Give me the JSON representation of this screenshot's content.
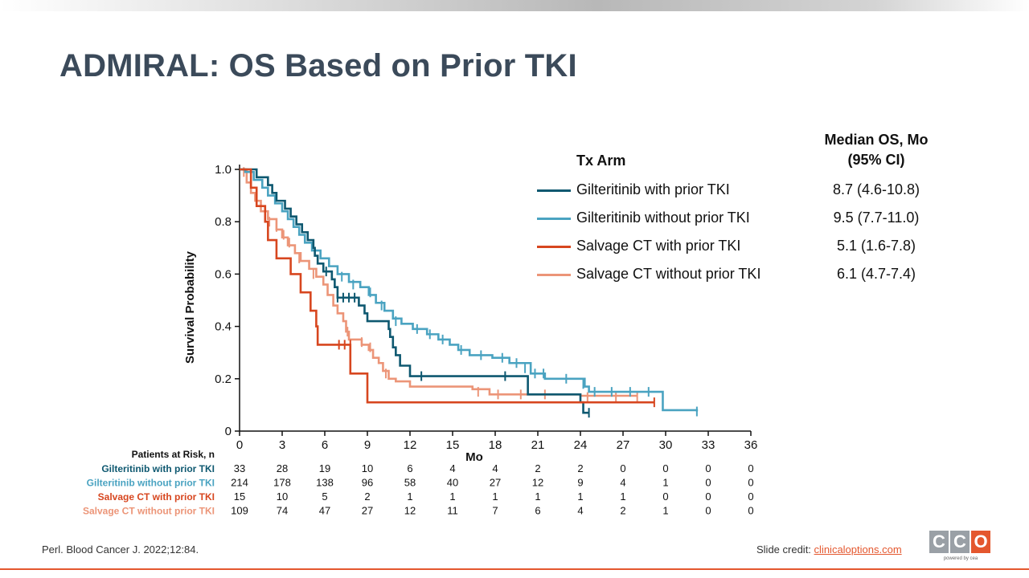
{
  "slide": {
    "title": "ADMIRAL: OS Based on Prior TKI",
    "reference": "Perl. Blood Cancer J. 2022;12:84.",
    "credit_label": "Slide credit: ",
    "credit_link": "clinicaloptions.com",
    "logo": {
      "letters": [
        "C",
        "C",
        "O"
      ],
      "tagline": "powered by cea"
    }
  },
  "legend": {
    "header_arm": "Tx Arm",
    "header_os_line1": "Median OS, Mo",
    "header_os_line2": "(95% CI)",
    "rows": [
      {
        "label": "Gilteritinib with prior TKI",
        "value": "8.7 (4.6-10.8)",
        "color": "#0e5870"
      },
      {
        "label": "Gilteritinib without prior TKI",
        "value": "9.5 (7.7-11.0)",
        "color": "#4aa3c1"
      },
      {
        "label": "Salvage CT with prior TKI",
        "value": "5.1 (1.6-7.8)",
        "color": "#d7461f"
      },
      {
        "label": "Salvage CT  without prior TKI",
        "value": "6.1 (4.7-7.4)",
        "color": "#ec9578"
      }
    ]
  },
  "chart_data": {
    "type": "line",
    "subtype": "kaplan-meier",
    "xlabel": "Mo",
    "ylabel": "Survival Probability",
    "xlim": [
      0,
      36
    ],
    "ylim": [
      0,
      1.0
    ],
    "xticks": [
      0,
      3,
      6,
      9,
      12,
      15,
      18,
      21,
      24,
      27,
      30,
      33,
      36
    ],
    "yticks": [
      0,
      0.2,
      0.4,
      0.6,
      0.8,
      1.0
    ],
    "ytick_labels": [
      "0",
      "0.2",
      "0.4",
      "0.6",
      "0.8",
      "1.0"
    ],
    "grid": false,
    "series": [
      {
        "name": "Gilteritinib with prior TKI",
        "color": "#0e5870",
        "steps": [
          [
            0,
            1.0
          ],
          [
            1.2,
            0.97
          ],
          [
            2.0,
            0.94
          ],
          [
            2.3,
            0.91
          ],
          [
            2.6,
            0.88
          ],
          [
            3.2,
            0.85
          ],
          [
            3.6,
            0.82
          ],
          [
            4.0,
            0.79
          ],
          [
            4.4,
            0.76
          ],
          [
            4.8,
            0.73
          ],
          [
            5.2,
            0.7
          ],
          [
            5.3,
            0.67
          ],
          [
            5.5,
            0.64
          ],
          [
            5.9,
            0.61
          ],
          [
            6.5,
            0.58
          ],
          [
            6.7,
            0.55
          ],
          [
            6.9,
            0.51
          ],
          [
            8.4,
            0.48
          ],
          [
            8.8,
            0.45
          ],
          [
            9.0,
            0.42
          ],
          [
            10.5,
            0.39
          ],
          [
            10.6,
            0.36
          ],
          [
            10.8,
            0.32
          ],
          [
            11.0,
            0.29
          ],
          [
            11.3,
            0.25
          ],
          [
            12.0,
            0.21
          ],
          [
            20.3,
            0.14
          ],
          [
            24.0,
            0.11
          ],
          [
            24.2,
            0.07
          ],
          [
            24.6,
            0.07
          ]
        ],
        "censors": [
          [
            6.1,
            0.61
          ],
          [
            6.9,
            0.51
          ],
          [
            7.3,
            0.51
          ],
          [
            7.7,
            0.51
          ],
          [
            8.1,
            0.51
          ],
          [
            12.8,
            0.21
          ],
          [
            18.7,
            0.21
          ],
          [
            24.6,
            0.07
          ]
        ]
      },
      {
        "name": "Gilteritinib without prior TKI",
        "color": "#4aa3c1",
        "steps": [
          [
            0,
            1.0
          ],
          [
            0.4,
            0.99
          ],
          [
            1.0,
            0.96
          ],
          [
            1.6,
            0.93
          ],
          [
            2.0,
            0.9
          ],
          [
            2.5,
            0.87
          ],
          [
            3.0,
            0.84
          ],
          [
            3.4,
            0.81
          ],
          [
            3.8,
            0.78
          ],
          [
            4.2,
            0.75
          ],
          [
            4.6,
            0.72
          ],
          [
            5.1,
            0.69
          ],
          [
            5.7,
            0.66
          ],
          [
            6.3,
            0.63
          ],
          [
            6.9,
            0.6
          ],
          [
            7.7,
            0.57
          ],
          [
            8.5,
            0.55
          ],
          [
            9.1,
            0.52
          ],
          [
            9.6,
            0.49
          ],
          [
            10.2,
            0.46
          ],
          [
            10.8,
            0.43
          ],
          [
            11.4,
            0.41
          ],
          [
            12.2,
            0.39
          ],
          [
            13.2,
            0.37
          ],
          [
            14.0,
            0.35
          ],
          [
            14.8,
            0.33
          ],
          [
            15.4,
            0.31
          ],
          [
            16.2,
            0.29
          ],
          [
            17.8,
            0.28
          ],
          [
            19.0,
            0.26
          ],
          [
            20.5,
            0.22
          ],
          [
            21.5,
            0.2
          ],
          [
            24.3,
            0.17
          ],
          [
            24.6,
            0.15
          ],
          [
            29.8,
            0.08
          ],
          [
            32.2,
            0.075
          ]
        ],
        "censors": [
          [
            7.2,
            0.59
          ],
          [
            8.0,
            0.56
          ],
          [
            9.2,
            0.53
          ],
          [
            10.0,
            0.48
          ],
          [
            11.0,
            0.42
          ],
          [
            12.5,
            0.39
          ],
          [
            13.4,
            0.37
          ],
          [
            14.3,
            0.35
          ],
          [
            15.6,
            0.31
          ],
          [
            17.0,
            0.29
          ],
          [
            18.5,
            0.28
          ],
          [
            19.5,
            0.26
          ],
          [
            20.1,
            0.24
          ],
          [
            20.8,
            0.22
          ],
          [
            21.4,
            0.22
          ],
          [
            23.0,
            0.2
          ],
          [
            24.2,
            0.18
          ],
          [
            25.0,
            0.15
          ],
          [
            26.2,
            0.15
          ],
          [
            27.5,
            0.15
          ],
          [
            28.8,
            0.15
          ],
          [
            32.2,
            0.075
          ]
        ]
      },
      {
        "name": "Salvage CT with prior TKI",
        "color": "#d7461f",
        "steps": [
          [
            0,
            1.0
          ],
          [
            0.8,
            0.93
          ],
          [
            1.2,
            0.86
          ],
          [
            1.8,
            0.8
          ],
          [
            2.0,
            0.73
          ],
          [
            2.6,
            0.66
          ],
          [
            3.6,
            0.6
          ],
          [
            4.3,
            0.53
          ],
          [
            5.0,
            0.46
          ],
          [
            5.4,
            0.4
          ],
          [
            5.5,
            0.33
          ],
          [
            7.8,
            0.22
          ],
          [
            9.0,
            0.11
          ],
          [
            29.2,
            0.11
          ]
        ],
        "censors": [
          [
            7.0,
            0.33
          ],
          [
            7.4,
            0.33
          ],
          [
            7.8,
            0.33
          ],
          [
            29.2,
            0.11
          ]
        ]
      },
      {
        "name": "Salvage CT  without prior TKI",
        "color": "#ec9578",
        "steps": [
          [
            0,
            1.0
          ],
          [
            0.5,
            0.95
          ],
          [
            0.8,
            0.91
          ],
          [
            1.1,
            0.88
          ],
          [
            1.5,
            0.84
          ],
          [
            2.0,
            0.81
          ],
          [
            2.6,
            0.77
          ],
          [
            3.0,
            0.74
          ],
          [
            3.4,
            0.71
          ],
          [
            3.9,
            0.68
          ],
          [
            4.3,
            0.65
          ],
          [
            4.9,
            0.62
          ],
          [
            5.4,
            0.59
          ],
          [
            5.9,
            0.56
          ],
          [
            6.2,
            0.52
          ],
          [
            6.6,
            0.48
          ],
          [
            6.9,
            0.45
          ],
          [
            7.3,
            0.42
          ],
          [
            7.5,
            0.38
          ],
          [
            7.7,
            0.35
          ],
          [
            8.6,
            0.33
          ],
          [
            9.1,
            0.31
          ],
          [
            9.4,
            0.28
          ],
          [
            9.8,
            0.26
          ],
          [
            10.1,
            0.23
          ],
          [
            10.5,
            0.2
          ],
          [
            11.0,
            0.19
          ],
          [
            12.0,
            0.17
          ],
          [
            16.4,
            0.16
          ],
          [
            17.6,
            0.14
          ],
          [
            24.0,
            0.135
          ],
          [
            28.0,
            0.135
          ]
        ],
        "censors": [
          [
            0.3,
            0.99
          ],
          [
            1.2,
            0.88
          ],
          [
            2.1,
            0.8
          ],
          [
            2.6,
            0.78
          ],
          [
            3.1,
            0.75
          ],
          [
            3.5,
            0.72
          ],
          [
            4.2,
            0.66
          ],
          [
            5.2,
            0.6
          ],
          [
            7.6,
            0.38
          ],
          [
            8.6,
            0.34
          ],
          [
            9.2,
            0.32
          ],
          [
            10.3,
            0.22
          ],
          [
            16.8,
            0.15
          ],
          [
            18.2,
            0.14
          ],
          [
            19.8,
            0.14
          ],
          [
            21.5,
            0.14
          ],
          [
            24.5,
            0.13
          ],
          [
            26.5,
            0.13
          ],
          [
            28.0,
            0.13
          ]
        ]
      }
    ],
    "risk_table": {
      "title": "Patients at Risk, n",
      "times": [
        0,
        3,
        6,
        9,
        12,
        15,
        18,
        21,
        24,
        27,
        30,
        33,
        36
      ],
      "rows": [
        {
          "label": "Gilteritinib with prior TKI",
          "color": "#0e5870",
          "values": [
            "33",
            "28",
            "19",
            "10",
            "6",
            "4",
            "4",
            "2",
            "2",
            "0",
            "0",
            "0",
            "0"
          ]
        },
        {
          "label": "Gilteritinib without prior TKI",
          "color": "#4aa3c1",
          "values": [
            "214",
            "178",
            "138",
            "96",
            "58",
            "40",
            "27",
            "12",
            "9",
            "4",
            "1",
            "0",
            "0"
          ]
        },
        {
          "label": "Salvage CT with prior TKI",
          "color": "#d7461f",
          "values": [
            "15",
            "10",
            "5",
            "2",
            "1",
            "1",
            "1",
            "1",
            "1",
            "1",
            "0",
            "0",
            "0"
          ]
        },
        {
          "label": "Salvage CT  without prior TKI",
          "color": "#ec9578",
          "values": [
            "109",
            "74",
            "47",
            "27",
            "12",
            "11",
            "7",
            "6",
            "4",
            "2",
            "1",
            "0",
            "0"
          ]
        }
      ]
    }
  }
}
